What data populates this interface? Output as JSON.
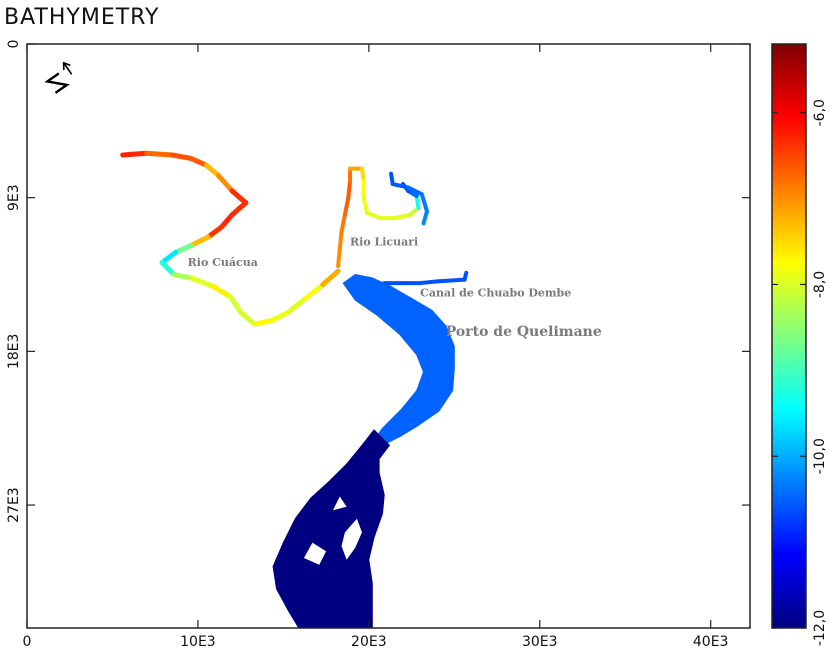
{
  "chart_data": {
    "type": "heatmap",
    "title": "BATHYMETRY",
    "xlabel": "",
    "ylabel": "",
    "x_ticks": [
      {
        "value": 0,
        "label": "0"
      },
      {
        "value": 10000,
        "label": "10E3"
      },
      {
        "value": 20000,
        "label": "20E3"
      },
      {
        "value": 30000,
        "label": "30E3"
      },
      {
        "value": 40000,
        "label": "40E3"
      }
    ],
    "y_ticks": [
      {
        "value": 0,
        "label": "0"
      },
      {
        "value": 9000,
        "label": "9E3"
      },
      {
        "value": 18000,
        "label": "18E3"
      },
      {
        "value": 27000,
        "label": "27E3"
      }
    ],
    "xlim": [
      0,
      42300
    ],
    "ylim": [
      0,
      34200
    ],
    "y_inverted": true,
    "colorbar": {
      "min": -12.0,
      "max": -5.2,
      "ticks": [
        {
          "value": -6.0,
          "label": "-6,0"
        },
        {
          "value": -8.0,
          "label": "-8,0"
        },
        {
          "value": -10.0,
          "label": "-10,0"
        },
        {
          "value": -12.0,
          "label": "-12,0"
        }
      ],
      "colormap": "jet"
    },
    "north_arrow": "N",
    "annotations": [
      {
        "text": "Rio Cuácua",
        "x": 9400,
        "y": 13000
      },
      {
        "text": "Rio Licuari",
        "x": 18900,
        "y": 11800
      },
      {
        "text": "Canal de Chuabo Dembe",
        "x": 23000,
        "y": 14800
      },
      {
        "text": "Porto de Quelimane",
        "x": 24500,
        "y": 17100
      }
    ],
    "features": [
      {
        "name": "Rio Cuácua",
        "kind": "channel",
        "path": [
          [
            5600,
            6500
          ],
          [
            7000,
            6400
          ],
          [
            8500,
            6500
          ],
          [
            9600,
            6700
          ],
          [
            10500,
            7100
          ],
          [
            11200,
            7700
          ],
          [
            12000,
            8600
          ],
          [
            12800,
            9300
          ],
          [
            12000,
            10000
          ],
          [
            11400,
            10700
          ],
          [
            10600,
            11300
          ],
          [
            9600,
            11800
          ],
          [
            8700,
            12200
          ],
          [
            7900,
            12800
          ],
          [
            8600,
            13500
          ],
          [
            9600,
            13700
          ],
          [
            10900,
            14200
          ],
          [
            11900,
            14800
          ],
          [
            12500,
            15700
          ],
          [
            13300,
            16400
          ],
          [
            14300,
            16200
          ],
          [
            15300,
            15700
          ],
          [
            16300,
            14900
          ],
          [
            17300,
            14100
          ],
          [
            18200,
            13300
          ]
        ],
        "depths": [
          -6.0,
          -6.6,
          -6.9,
          -6.3,
          -7.0,
          -7.6,
          -6.4,
          -6.3,
          -6.4,
          -6.2,
          -6.6,
          -8.0,
          -9.4,
          -9.8,
          -8.6,
          -8.0,
          -7.9,
          -7.4,
          -8.7,
          -7.4,
          -8.0,
          -7.7,
          -8.2,
          -7.4,
          -7.0
        ]
      },
      {
        "name": "Rio Licuari",
        "kind": "channel",
        "path": [
          [
            18200,
            13000
          ],
          [
            18300,
            12000
          ],
          [
            18400,
            11000
          ],
          [
            18600,
            10000
          ],
          [
            18800,
            9000
          ],
          [
            18900,
            8000
          ],
          [
            18900,
            7300
          ],
          [
            19600,
            7300
          ],
          [
            19700,
            8000
          ],
          [
            19700,
            9000
          ],
          [
            19900,
            9900
          ],
          [
            20700,
            10200
          ],
          [
            21500,
            10200
          ],
          [
            22400,
            10000
          ],
          [
            22900,
            9600
          ],
          [
            22800,
            8900
          ],
          [
            22300,
            8600
          ],
          [
            22000,
            8200
          ]
        ],
        "depths": [
          -7.0,
          -7.0,
          -6.9,
          -6.8,
          -6.6,
          -6.7,
          -6.9,
          -7.4,
          -7.6,
          -7.9,
          -7.9,
          -8.0,
          -7.9,
          -7.9,
          -8.3,
          -10.3,
          -10.6,
          -10.7
        ]
      },
      {
        "name": "Licuari tributary",
        "kind": "channel",
        "path": [
          [
            21300,
            7600
          ],
          [
            21400,
            8200
          ],
          [
            22300,
            8400
          ],
          [
            23100,
            8800
          ],
          [
            23400,
            9800
          ],
          [
            23200,
            10500
          ]
        ],
        "depths": [
          -10.6,
          -10.6,
          -10.5,
          -10.4,
          -10.3,
          -10.2
        ]
      },
      {
        "name": "Canal de Chuabo Dembe",
        "kind": "channel",
        "path": [
          [
            20900,
            14000
          ],
          [
            22100,
            14000
          ],
          [
            23000,
            14000
          ],
          [
            24000,
            13900
          ],
          [
            25600,
            13800
          ],
          [
            25700,
            13400
          ]
        ],
        "depths": [
          -10.6,
          -10.6,
          -10.6,
          -10.6,
          -10.6,
          -10.6
        ]
      },
      {
        "name": "Estuary upper",
        "kind": "water_body",
        "depth": -10.5,
        "polygon": [
          [
            18500,
            14000
          ],
          [
            19200,
            13500
          ],
          [
            20200,
            13700
          ],
          [
            21300,
            14200
          ],
          [
            22500,
            14900
          ],
          [
            23700,
            15600
          ],
          [
            24500,
            16500
          ],
          [
            25000,
            17700
          ],
          [
            25000,
            19000
          ],
          [
            24900,
            20300
          ],
          [
            24100,
            21500
          ],
          [
            22800,
            22400
          ],
          [
            21800,
            23000
          ],
          [
            21000,
            23400
          ],
          [
            20300,
            23200
          ],
          [
            20800,
            22500
          ],
          [
            21900,
            21400
          ],
          [
            22800,
            20300
          ],
          [
            23200,
            19200
          ],
          [
            22800,
            18200
          ],
          [
            21800,
            17000
          ],
          [
            20500,
            15900
          ],
          [
            19200,
            15000
          ]
        ]
      },
      {
        "name": "Estuary lower",
        "kind": "water_body",
        "depth": -12.0,
        "polygon": [
          [
            20300,
            22600
          ],
          [
            21200,
            23500
          ],
          [
            20600,
            24300
          ],
          [
            20600,
            25100
          ],
          [
            20900,
            26400
          ],
          [
            20800,
            27500
          ],
          [
            20300,
            28900
          ],
          [
            20000,
            30200
          ],
          [
            20200,
            31600
          ],
          [
            20200,
            33200
          ],
          [
            20200,
            34200
          ],
          [
            15900,
            34200
          ],
          [
            15300,
            33200
          ],
          [
            14600,
            31900
          ],
          [
            14400,
            30600
          ],
          [
            15000,
            29200
          ],
          [
            15700,
            27800
          ],
          [
            16600,
            26600
          ],
          [
            17700,
            25600
          ],
          [
            18700,
            24600
          ],
          [
            19600,
            23500
          ]
        ]
      }
    ]
  }
}
